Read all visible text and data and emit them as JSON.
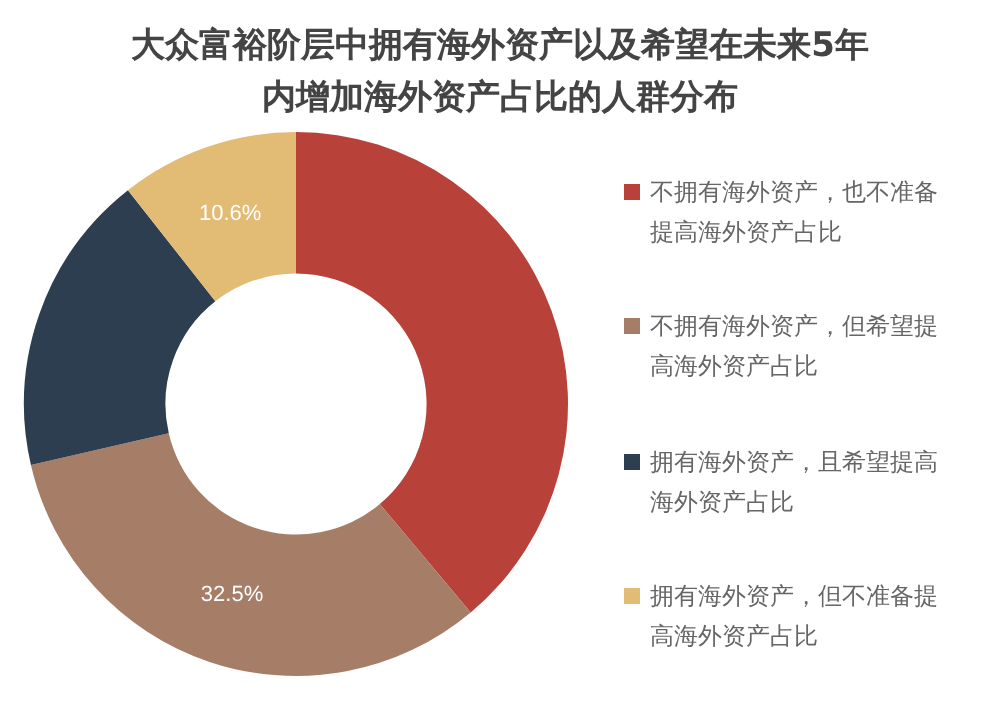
{
  "chart_data": {
    "type": "donut",
    "title": "大众富裕阶层中拥有海外资产以及希望在未来5年内增加海外资产占比的人群分布",
    "categories": [
      "不拥有海外资产，也不准备提高海外资产占比",
      "不拥有海外资产，但希望提高海外资产占比",
      "拥有海外资产，且希望提高海外资产占比",
      "拥有海外资产，但不准备提高海外资产占比"
    ],
    "values": [
      38.9,
      32.5,
      18.0,
      10.6
    ],
    "value_labels": [
      null,
      "32.5%",
      null,
      "10.6%"
    ],
    "colors": [
      "#b8413a",
      "#a67d66",
      "#2c3e50",
      "#e2bb74"
    ],
    "legend": "right"
  }
}
